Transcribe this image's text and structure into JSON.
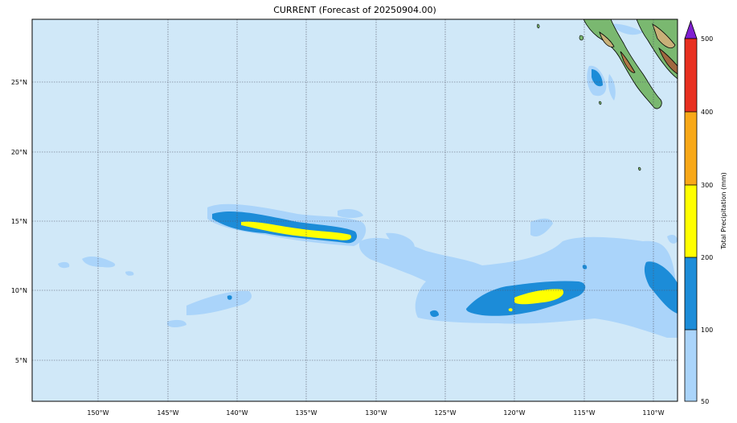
{
  "title": "CURRENT (Forecast of 20250904.00)",
  "map": {
    "lon_labels": [
      "150°W",
      "145°W",
      "140°W",
      "135°W",
      "130°W",
      "125°W",
      "120°W",
      "115°W",
      "110°W"
    ],
    "lat_labels": [
      "25°N",
      "20°N",
      "15°N",
      "10°N",
      "5°N"
    ],
    "ocean_color": "#d0e8f8",
    "grid": true
  },
  "colorbar": {
    "label": "Total Precipitation (mm)",
    "ticks": [
      "50",
      "100",
      "200",
      "300",
      "400",
      "500"
    ],
    "colors": [
      "#aad4fa",
      "#1c8cd8",
      "#ffff00",
      "#f8a818",
      "#e83020",
      "#8020d0"
    ]
  }
}
